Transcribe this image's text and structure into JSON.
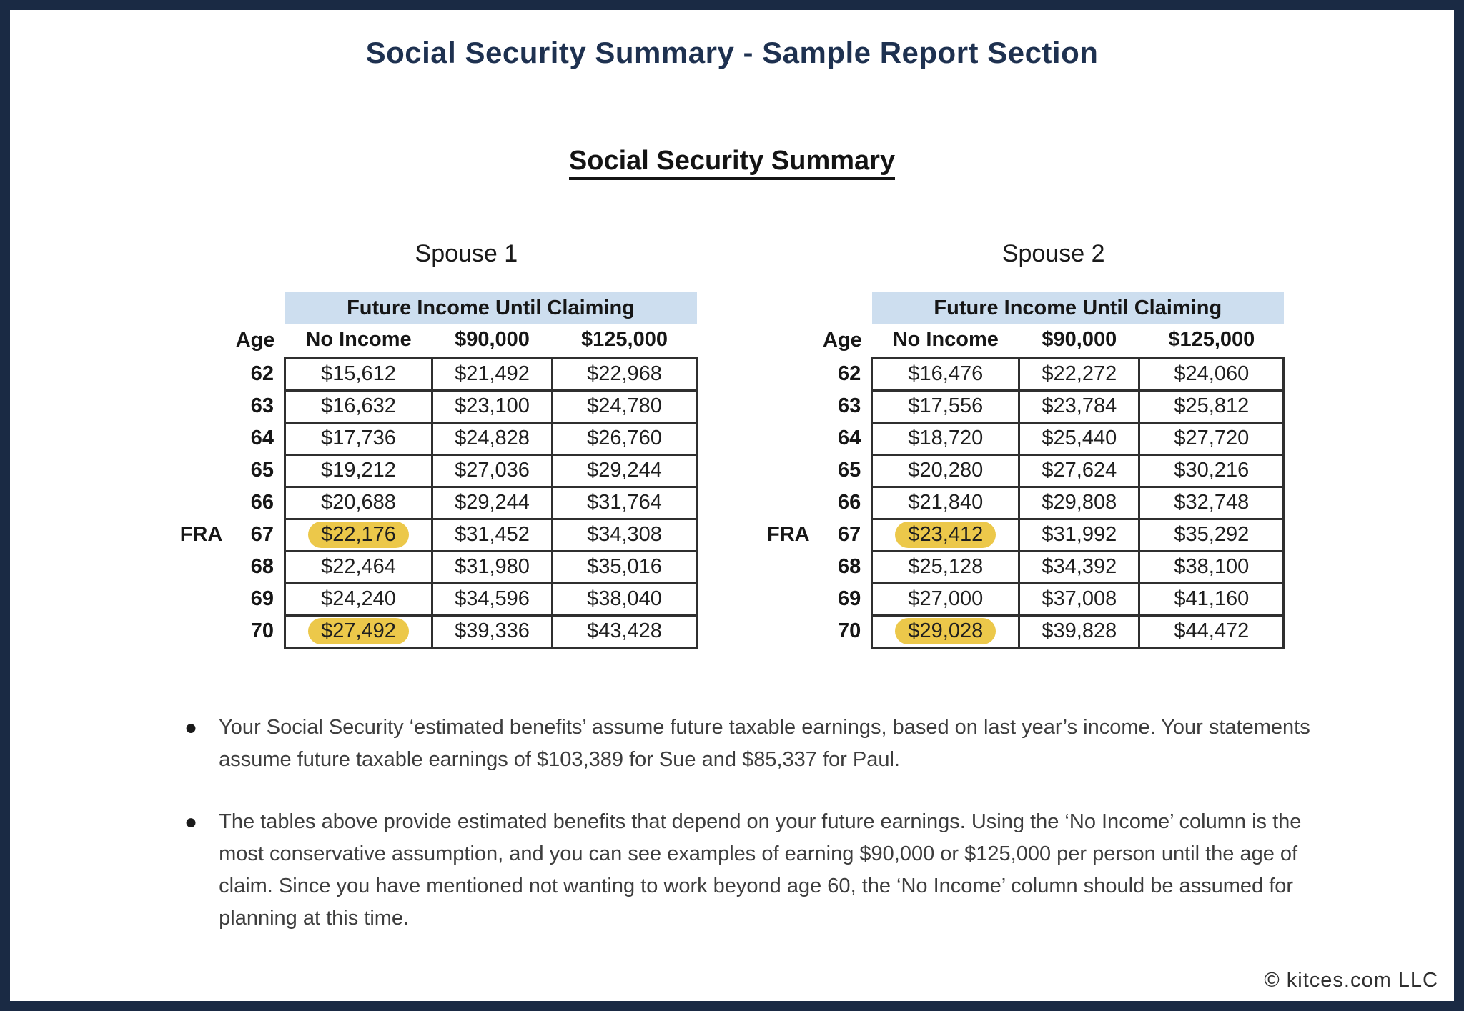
{
  "page": {
    "title": "Social Security Summary - Sample Report Section",
    "section_heading": "Social Security Summary",
    "footer_credit": "© kitces.com LLC",
    "colors": {
      "page_border": "#1a2a44",
      "title_text": "#1e3150",
      "band_bg": "#cddeef",
      "highlight": "#ecc84a",
      "grid_border": "#2f2f2f"
    }
  },
  "tables": [
    {
      "spouse_label": "Spouse 1",
      "band_header": "Future Income Until Claiming",
      "columns": [
        "Age",
        "No Income",
        "$90,000",
        "$125,000"
      ],
      "fra_label": "FRA",
      "rows": [
        {
          "age": "62",
          "values": [
            "$15,612",
            "$21,492",
            "$22,968"
          ]
        },
        {
          "age": "63",
          "values": [
            "$16,632",
            "$23,100",
            "$24,780"
          ]
        },
        {
          "age": "64",
          "values": [
            "$17,736",
            "$24,828",
            "$26,760"
          ]
        },
        {
          "age": "65",
          "values": [
            "$19,212",
            "$27,036",
            "$29,244"
          ]
        },
        {
          "age": "66",
          "values": [
            "$20,688",
            "$29,244",
            "$31,764"
          ]
        },
        {
          "age": "67",
          "fra": true,
          "highlighted_column": "No Income",
          "values": [
            "$22,176",
            "$31,452",
            "$34,308"
          ]
        },
        {
          "age": "68",
          "values": [
            "$22,464",
            "$31,980",
            "$35,016"
          ]
        },
        {
          "age": "69",
          "values": [
            "$24,240",
            "$34,596",
            "$38,040"
          ]
        },
        {
          "age": "70",
          "highlighted_column": "No Income",
          "values": [
            "$27,492",
            "$39,336",
            "$43,428"
          ]
        }
      ]
    },
    {
      "spouse_label": "Spouse 2",
      "band_header": "Future Income Until Claiming",
      "columns": [
        "Age",
        "No Income",
        "$90,000",
        "$125,000"
      ],
      "fra_label": "FRA",
      "rows": [
        {
          "age": "62",
          "values": [
            "$16,476",
            "$22,272",
            "$24,060"
          ]
        },
        {
          "age": "63",
          "values": [
            "$17,556",
            "$23,784",
            "$25,812"
          ]
        },
        {
          "age": "64",
          "values": [
            "$18,720",
            "$25,440",
            "$27,720"
          ]
        },
        {
          "age": "65",
          "values": [
            "$20,280",
            "$27,624",
            "$30,216"
          ]
        },
        {
          "age": "66",
          "values": [
            "$21,840",
            "$29,808",
            "$32,748"
          ]
        },
        {
          "age": "67",
          "fra": true,
          "highlighted_column": "No Income",
          "values": [
            "$23,412",
            "$31,992",
            "$35,292"
          ]
        },
        {
          "age": "68",
          "values": [
            "$25,128",
            "$34,392",
            "$38,100"
          ]
        },
        {
          "age": "69",
          "values": [
            "$27,000",
            "$37,008",
            "$41,160"
          ]
        },
        {
          "age": "70",
          "highlighted_column": "No Income",
          "values": [
            "$29,028",
            "$39,828",
            "$44,472"
          ]
        }
      ]
    }
  ],
  "bullets": [
    "Your Social Security ‘estimated benefits’ assume future taxable earnings, based on last year’s income. Your statements assume future taxable earnings of $103,389 for Sue and $85,337 for Paul.",
    "The tables above provide estimated benefits that depend on your future earnings. Using the ‘No Income’ column is the most conservative assumption, and you can see examples of earning $90,000 or $125,000 per person until the age of claim. Since you have mentioned not wanting to work beyond age 60, the ‘No Income’ column should be assumed for planning at this time."
  ]
}
